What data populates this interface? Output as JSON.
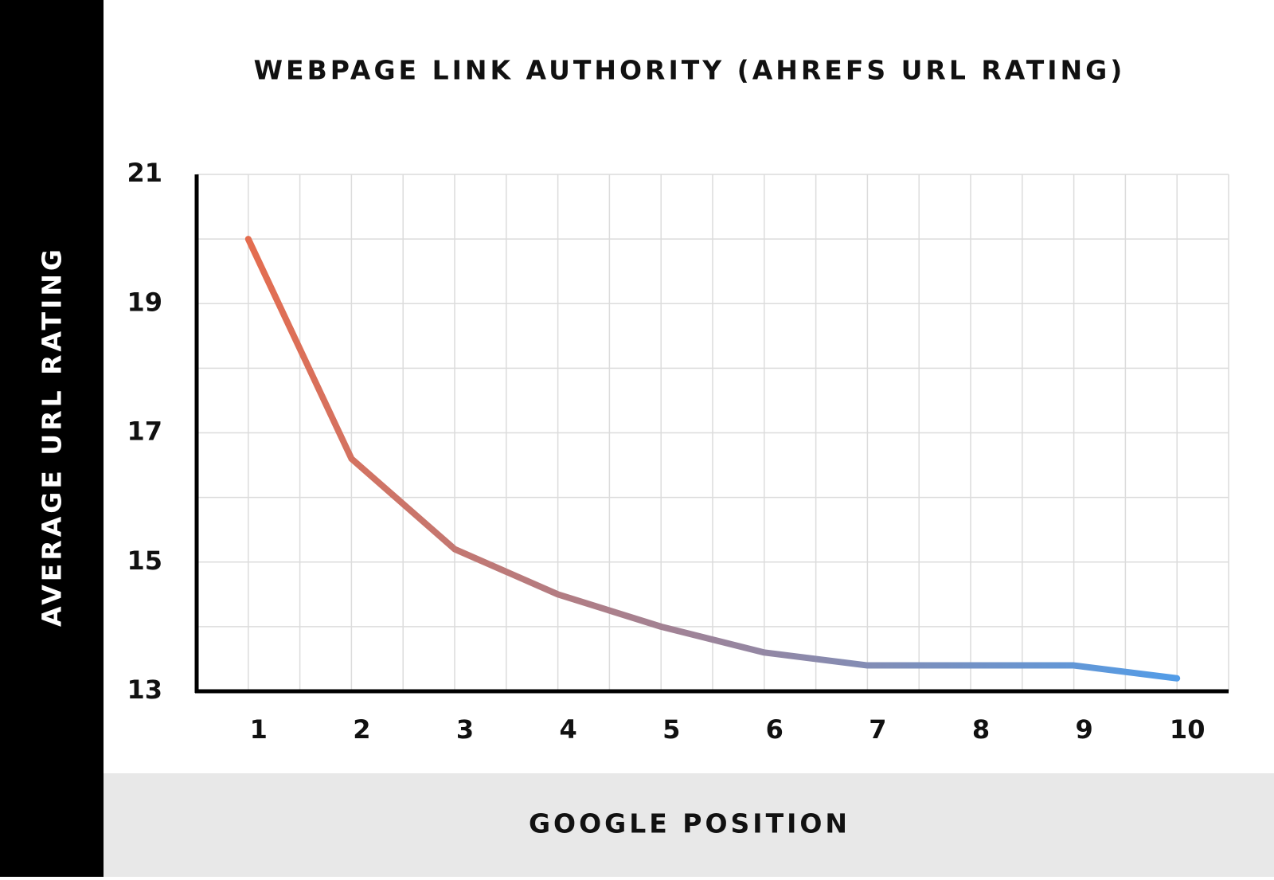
{
  "chart_data": {
    "type": "line",
    "title": "WEBPAGE LINK AUTHORITY (AHREFS URL RATING)",
    "x_label": "GOOGLE POSITION",
    "y_label": "AVERAGE URL RATING",
    "x": [
      1,
      2,
      3,
      4,
      5,
      6,
      7,
      8,
      9,
      10
    ],
    "series": [
      {
        "name": "Average URL Rating",
        "color_start": "#ec6a47",
        "color_end": "#4a9ff0",
        "values": [
          20.0,
          16.6,
          15.2,
          14.5,
          14.0,
          13.6,
          13.4,
          13.4,
          13.4,
          13.2
        ]
      }
    ],
    "xlim": [
      0.5,
      10.5
    ],
    "xticks": [
      1,
      2,
      3,
      4,
      5,
      6,
      7,
      8,
      9,
      10
    ],
    "ylim": [
      13,
      21
    ],
    "yticks": [
      13,
      15,
      17,
      19,
      21
    ],
    "grid": true
  }
}
